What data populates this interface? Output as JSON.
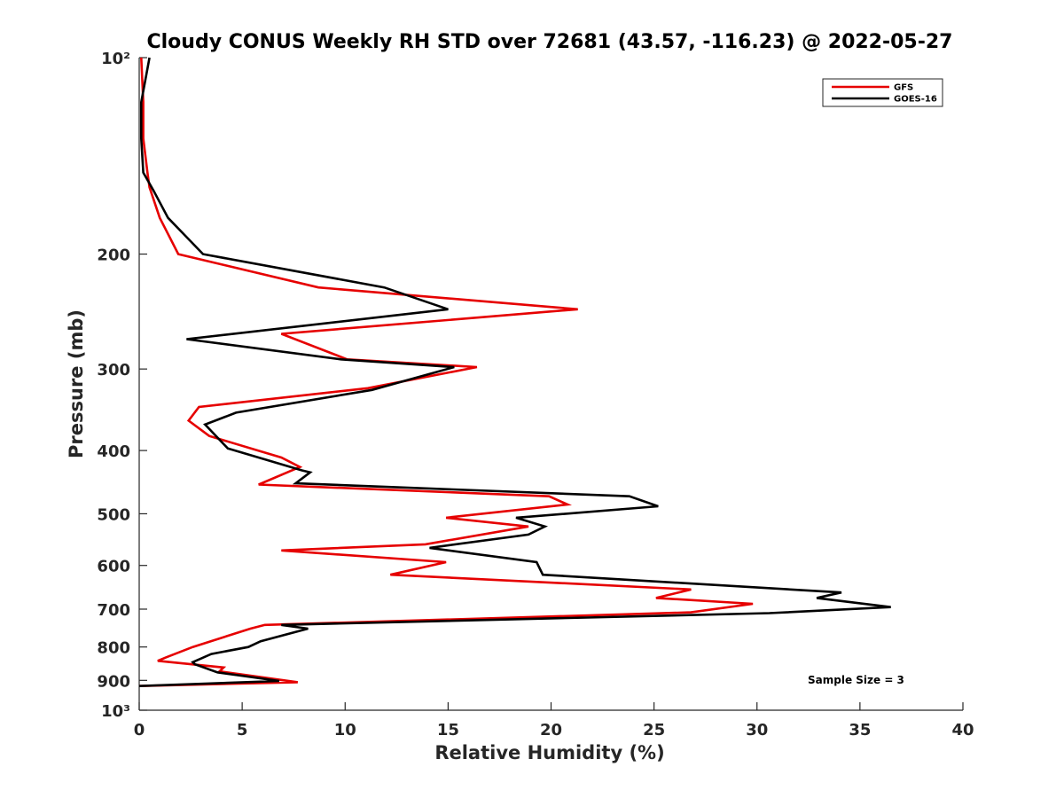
{
  "chart_data": {
    "type": "line",
    "title": "Cloudy CONUS Weekly RH STD over 72681 (43.57, -116.23) @ 2022-05-27",
    "xlabel": "Relative Humidity (%)",
    "ylabel": "Pressure (mb)",
    "xlim": [
      0,
      40
    ],
    "ylim": [
      100,
      1000
    ],
    "y_scale": "log",
    "y_reversed": true,
    "x_ticks": [
      0,
      5,
      10,
      15,
      20,
      25,
      30,
      35,
      40
    ],
    "x_tick_labels": [
      "0",
      "5",
      "10",
      "15",
      "20",
      "25",
      "30",
      "35",
      "40"
    ],
    "y_ticks": [
      100,
      200,
      300,
      400,
      500,
      600,
      700,
      800,
      900,
      1000
    ],
    "y_tick_labels": [
      "10²",
      "200",
      "300",
      "400",
      "500",
      "600",
      "700",
      "800",
      "900",
      "10³"
    ],
    "grid": false,
    "legend_position": "top-right",
    "annotation": "Sample Size = 3",
    "series": [
      {
        "name": "GFS",
        "color": "#e60000",
        "points": [
          [
            0.1,
            100
          ],
          [
            0.2,
            117
          ],
          [
            0.2,
            133
          ],
          [
            0.4,
            150
          ],
          [
            0.5,
            158
          ],
          [
            1.0,
            176
          ],
          [
            1.9,
            200
          ],
          [
            8.7,
            225
          ],
          [
            21.3,
            243
          ],
          [
            6.9,
            265
          ],
          [
            10.1,
            290
          ],
          [
            16.4,
            298
          ],
          [
            11.1,
            321
          ],
          [
            2.9,
            343
          ],
          [
            2.4,
            360
          ],
          [
            3.4,
            380
          ],
          [
            6.9,
            410
          ],
          [
            7.8,
            424
          ],
          [
            5.8,
            451
          ],
          [
            19.9,
            470
          ],
          [
            20.8,
            484
          ],
          [
            14.9,
            507
          ],
          [
            18.9,
            523
          ],
          [
            13.9,
            557
          ],
          [
            6.9,
            569
          ],
          [
            14.9,
            593
          ],
          [
            12.2,
            620
          ],
          [
            26.8,
            653
          ],
          [
            25.1,
            673
          ],
          [
            29.8,
            687
          ],
          [
            26.8,
            708
          ],
          [
            6.1,
            740
          ],
          [
            5.4,
            750
          ],
          [
            2.6,
            800
          ],
          [
            1.3,
            830
          ],
          [
            0.9,
            840
          ],
          [
            4.1,
            860
          ],
          [
            3.9,
            872
          ],
          [
            7.7,
            906
          ],
          [
            0.0,
            918
          ]
        ]
      },
      {
        "name": "GOES-16",
        "color": "#000000",
        "points": [
          [
            0.5,
            100
          ],
          [
            0.1,
            117
          ],
          [
            0.1,
            133
          ],
          [
            0.2,
            150
          ],
          [
            0.7,
            160
          ],
          [
            1.4,
            176
          ],
          [
            3.1,
            200
          ],
          [
            11.9,
            225
          ],
          [
            15.0,
            243
          ],
          [
            2.3,
            270
          ],
          [
            9.8,
            290
          ],
          [
            15.3,
            298
          ],
          [
            11.3,
            323
          ],
          [
            4.7,
            350
          ],
          [
            3.2,
            365
          ],
          [
            4.3,
            397
          ],
          [
            7.9,
            429
          ],
          [
            8.3,
            432
          ],
          [
            7.6,
            449
          ],
          [
            23.8,
            470
          ],
          [
            25.2,
            487
          ],
          [
            18.3,
            507
          ],
          [
            19.7,
            523
          ],
          [
            18.9,
            538
          ],
          [
            14.1,
            564
          ],
          [
            19.3,
            593
          ],
          [
            19.6,
            620
          ],
          [
            34.1,
            660
          ],
          [
            32.9,
            673
          ],
          [
            36.5,
            695
          ],
          [
            30.6,
            710
          ],
          [
            6.9,
            740
          ],
          [
            8.2,
            750
          ],
          [
            5.9,
            784
          ],
          [
            5.3,
            800
          ],
          [
            3.5,
            820
          ],
          [
            2.6,
            844
          ],
          [
            2.7,
            850
          ],
          [
            3.8,
            875
          ],
          [
            6.8,
            902
          ],
          [
            0.0,
            918
          ]
        ]
      }
    ]
  }
}
